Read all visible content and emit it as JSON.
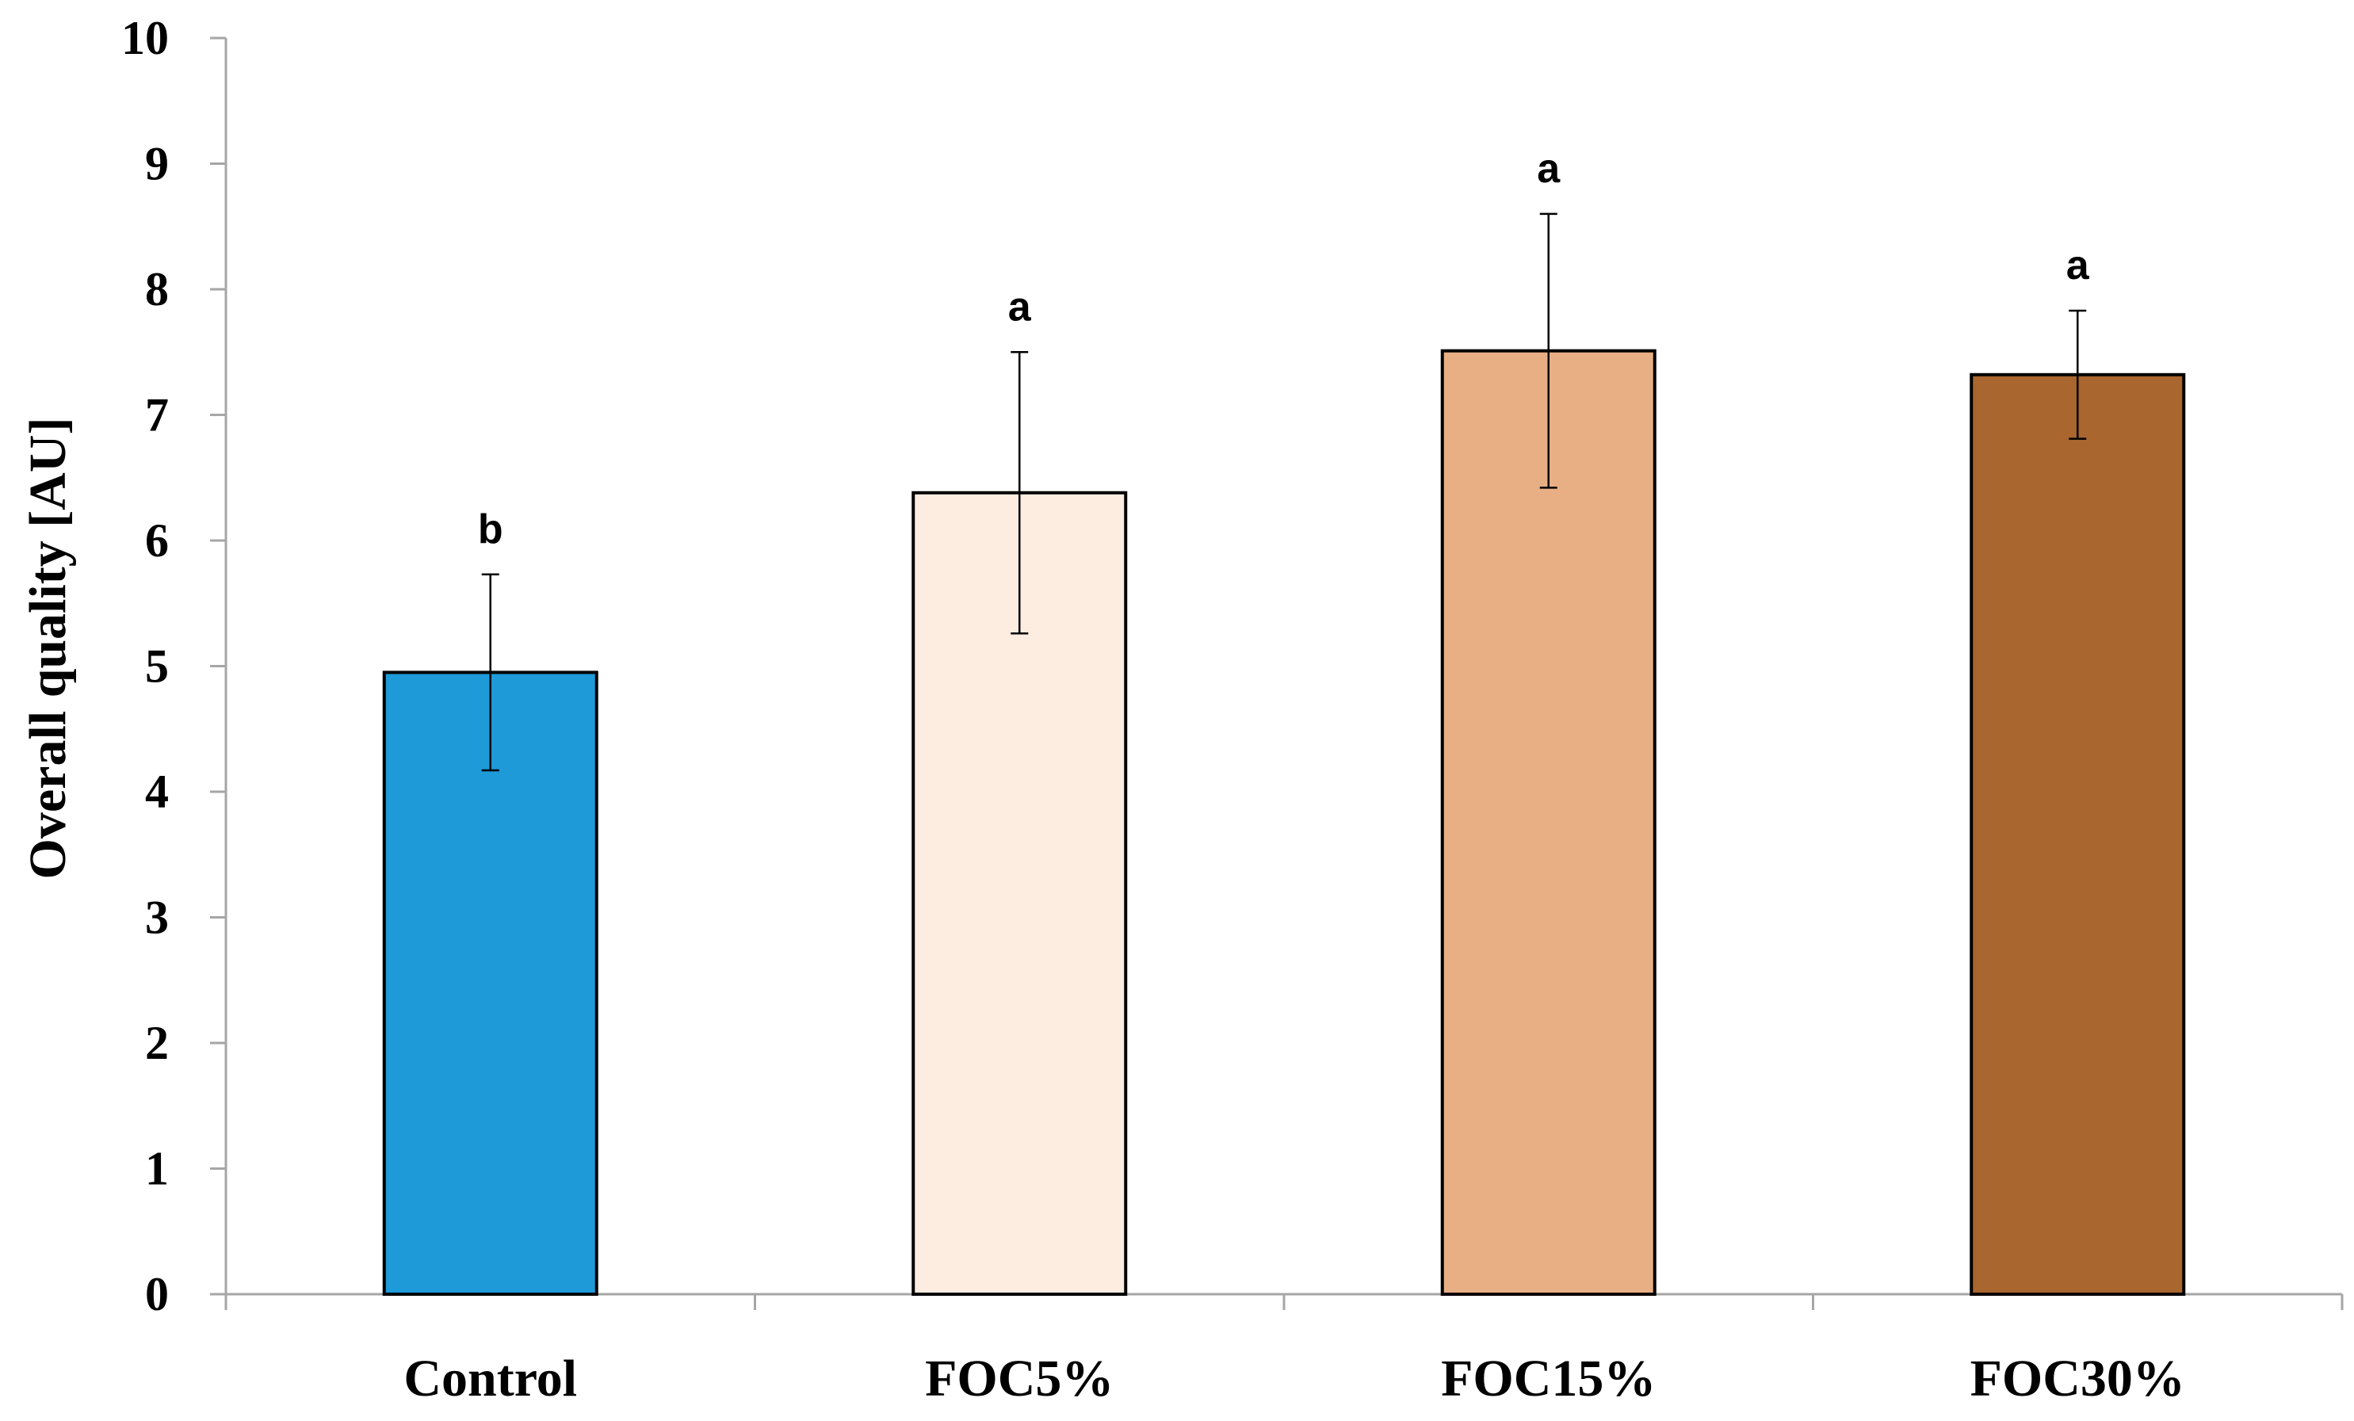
{
  "chart_data": {
    "type": "bar",
    "title": "",
    "xlabel": "",
    "ylabel": "Overall quality [AU]",
    "ylim": [
      0,
      10
    ],
    "yticks": [
      "0",
      "1",
      "2",
      "3",
      "4",
      "5",
      "6",
      "7",
      "8",
      "9",
      "10"
    ],
    "categories": [
      "Control",
      "FOC5%",
      "FOC15%",
      "FOC30%"
    ],
    "values": [
      4.95,
      6.38,
      7.51,
      7.32
    ],
    "errors": [
      0.78,
      1.12,
      1.09,
      0.51
    ],
    "significance": [
      "b",
      "a",
      "a",
      "a"
    ],
    "colors": [
      "#1E9AD8",
      "#FDEDE1",
      "#E8AF85",
      "#A9662E"
    ],
    "grid": false,
    "legend": "none"
  }
}
